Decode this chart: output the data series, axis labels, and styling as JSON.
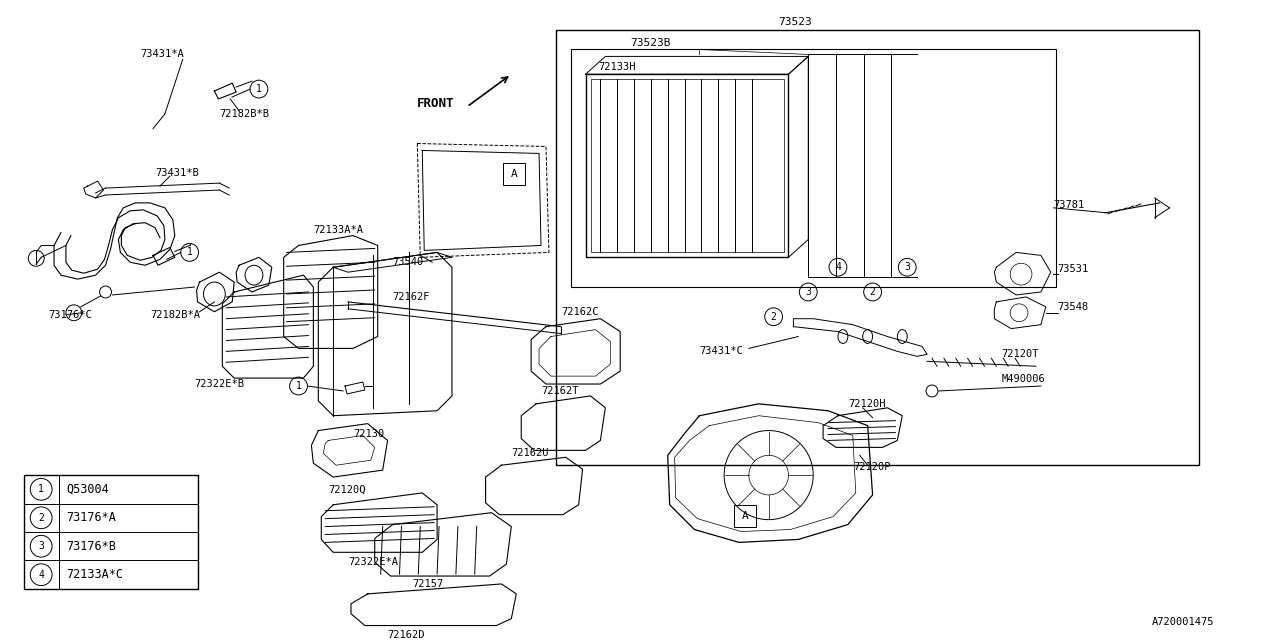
{
  "bg_color": "#ffffff",
  "line_color": "#000000",
  "diagram_id": "A720001475",
  "legend": [
    {
      "num": "1",
      "code": "Q53004"
    },
    {
      "num": "2",
      "code": "73176*A"
    },
    {
      "num": "3",
      "code": "73176*B"
    },
    {
      "num": "4",
      "code": "72133A*C"
    }
  ]
}
